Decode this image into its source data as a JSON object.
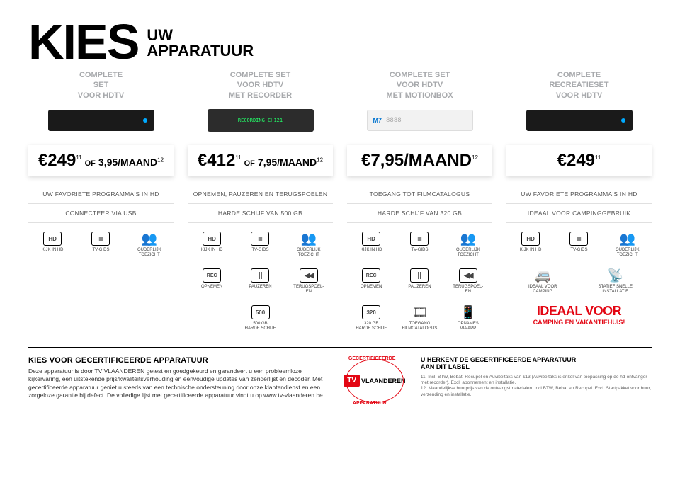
{
  "header": {
    "title": "KIES",
    "sub1": "UW",
    "sub2": "APPARATUUR"
  },
  "columns": [
    {
      "title": "COMPLETE\nSET\nVOOR HDTV",
      "device": "dark",
      "price_main": "€249",
      "price_main_sup": "11",
      "price_of": "OF",
      "price_month": "3,95/MAAND",
      "price_month_sup": "12",
      "line1": "UW FAVORIETE PROGRAMMA'S IN HD",
      "line2": "CONNECTEER VIA USB",
      "row1": [
        {
          "icon": "hd",
          "label": "KIJK IN HD"
        },
        {
          "icon": "list",
          "label": "TV-GIDS"
        },
        {
          "icon": "people",
          "label": "OUDERLIJK\nTOEZICHT"
        }
      ],
      "row2": [],
      "row3": []
    },
    {
      "title": "COMPLETE SET\nVOOR HDTV\nMET RECORDER",
      "device": "med",
      "price_main": "€412",
      "price_main_sup": "11",
      "price_of": "OF",
      "price_month": "7,95/MAAND",
      "price_month_sup": "12",
      "line1": "OPNEMEN, PAUZEREN EN TERUGSPOELEN",
      "line2": "HARDE SCHIJF VAN 500 GB",
      "row1": [
        {
          "icon": "hd",
          "label": "KIJK IN HD"
        },
        {
          "icon": "list",
          "label": "TV-GIDS"
        },
        {
          "icon": "people",
          "label": "OUDERLIJK\nTOEZICHT"
        }
      ],
      "row2": [
        {
          "icon": "rec",
          "label": "OPNEMEN"
        },
        {
          "icon": "pause",
          "label": "PAUZEREN"
        },
        {
          "icon": "rew",
          "label": "TERUGSPOEL-\nEN"
        }
      ],
      "row3": [
        {
          "icon": "500",
          "label": "500 GB\nHARDE SCHIJF"
        }
      ]
    },
    {
      "title": "COMPLETE SET\nVOOR HDTV\nMET MOTIONBOX",
      "device": "light",
      "price_main": "",
      "price_main_sup": "",
      "price_of": "",
      "price_month": "€7,95/MAAND",
      "price_month_sup": "12",
      "line1": "TOEGANG TOT FILMCATALOGUS",
      "line2": "HARDE SCHIJF VAN 320 GB",
      "row1": [
        {
          "icon": "hd",
          "label": "KIJK IN HD"
        },
        {
          "icon": "list",
          "label": "TV-GIDS"
        },
        {
          "icon": "people",
          "label": "OUDERLIJK\nTOEZICHT"
        }
      ],
      "row2": [
        {
          "icon": "rec",
          "label": "OPNEMEN"
        },
        {
          "icon": "pause",
          "label": "PAUZEREN"
        },
        {
          "icon": "rew",
          "label": "TERUGSPOEL-\nEN"
        }
      ],
      "row3": [
        {
          "icon": "320",
          "label": "320 GB\nHARDE SCHIJF"
        },
        {
          "icon": "film",
          "label": "TOEGANG\nFILMCATALOGUS"
        },
        {
          "icon": "phone",
          "label": "OPNAMES\nVIA APP"
        }
      ]
    },
    {
      "title": "COMPLETE\nRECREATIESET\nVOOR HDTV",
      "device": "dark",
      "price_main": "€249",
      "price_main_sup": "11",
      "price_of": "",
      "price_month": "",
      "price_month_sup": "",
      "line1": "UW FAVORIETE PROGRAMMA'S IN HD",
      "line2": "IDEAAL VOOR CAMPINGGEBRUIK",
      "row1": [
        {
          "icon": "hd",
          "label": "KIJK IN HD"
        },
        {
          "icon": "list",
          "label": "TV-GIDS"
        },
        {
          "icon": "people",
          "label": "OUDERLIJK\nTOEZICHT"
        }
      ],
      "row2": [
        {
          "icon": "caravan",
          "label": "IDEAAL VOOR\nCAMPING"
        },
        {
          "icon": "satdish",
          "label": "STATIEF SNELLE\nINSTALLATIE"
        }
      ],
      "row3": [],
      "ideaal": {
        "big": "IDEAAL VOOR",
        "small": "CAMPING EN VAKANTIEHUIS!"
      }
    }
  ],
  "footer": {
    "heading": "KIES VOOR GECERTIFICEERDE APPARATUUR",
    "body": "Deze apparatuur is door TV VLAANDEREN getest en goedgekeurd en garandeert u een probleemloze kijkervaring, een uitstekende prijs/kwaliteitsverhouding en eenvoudige updates van zenderlijst en decoder. Met gecertificeerde apparatuur geniet u steeds van een technische ondersteuning door onze klantendienst en een zorgeloze garantie bij defect. De volledige lijst met gecertificeerde apparatuur vindt u op www.tv-vlaanderen.be",
    "badge": {
      "tv": "TV",
      "vl": "VLAANDEREN",
      "ring_top": "GECERTIFICEERDE",
      "ring_bot": "APPARATUUR"
    },
    "right_heading": "U HERKENT DE GECERTIFICEERDE APPARATUUR\nAAN DIT LABEL",
    "fine1": "11. Incl. BTW, Bebat, Recupel en Auvibeltaks van €13 (Auvibeltaks is enkel van toepassing op de hd-ontvanger met recorder). Excl. abonnement en installatie.",
    "fine2": "12. Maandelijkse huurprijs van de ontvangstmaterialen. Incl BTW, Bebat en Recupel. Excl. Startpakket voor huur, verzending en installatie."
  },
  "colors": {
    "red": "#e30613",
    "grey": "#a7a9ac"
  }
}
